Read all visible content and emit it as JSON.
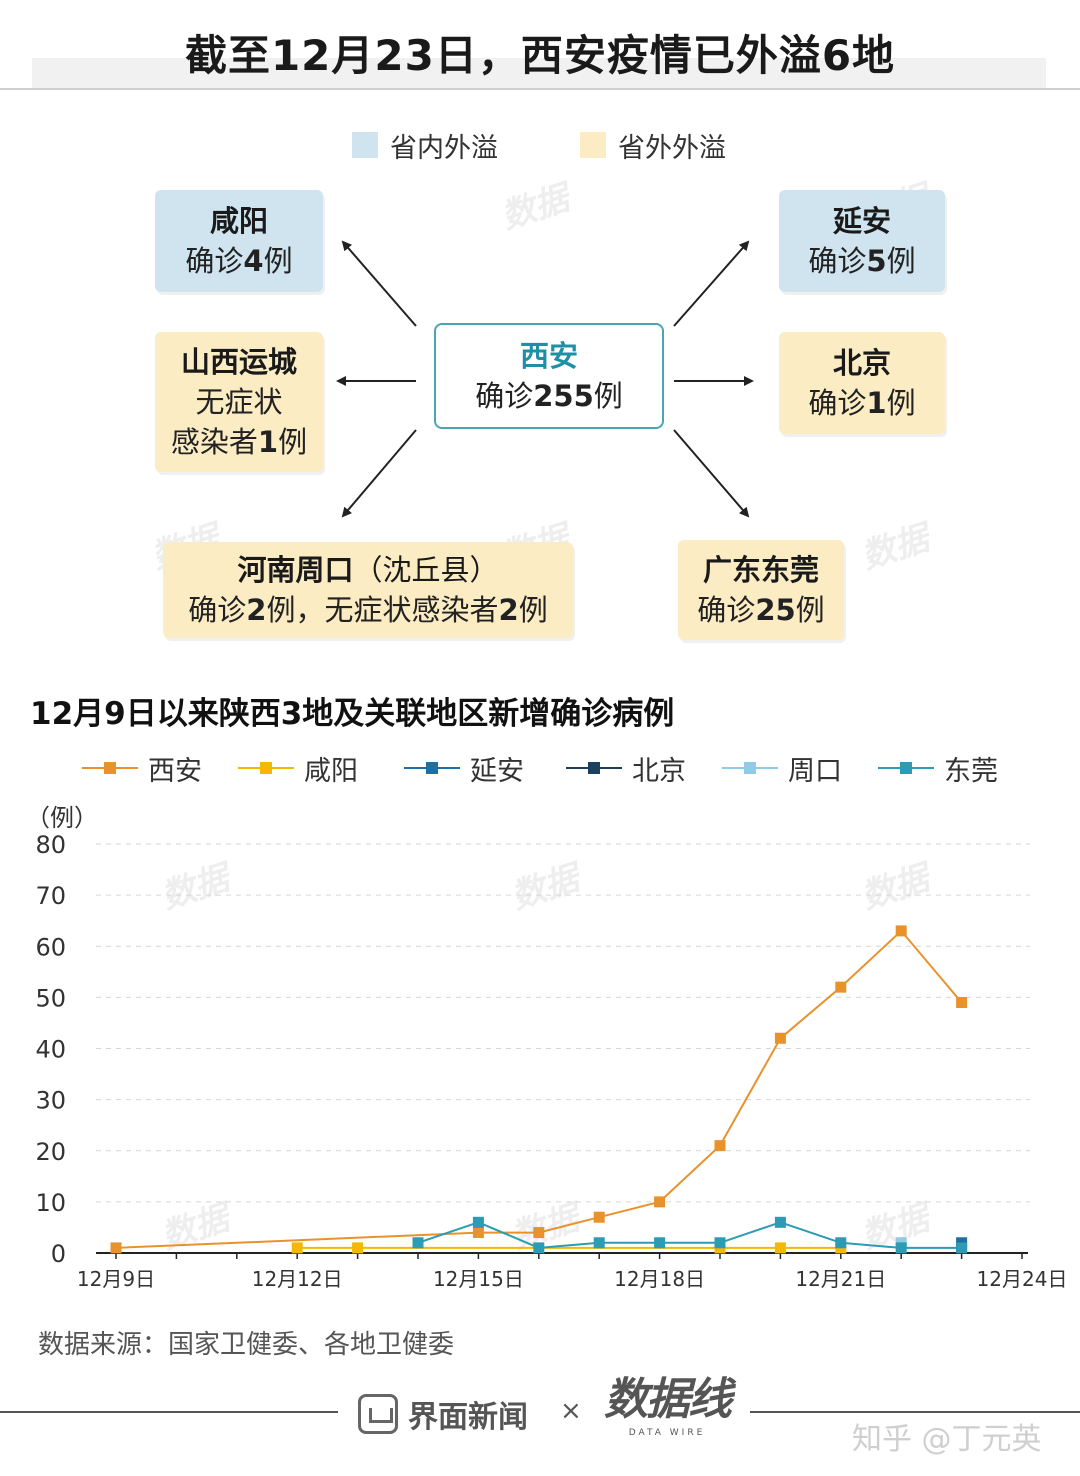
{
  "title": "截至12月23日，西安疫情已外溢6地",
  "legend_top": [
    {
      "label": "省内外溢",
      "color": "#cfe4ef"
    },
    {
      "label": "省外外溢",
      "color": "#fbecc4"
    }
  ],
  "center_box": {
    "name": "西安",
    "line_pre": "确诊",
    "value": "255",
    "line_post": "例"
  },
  "boxes": {
    "xianyang": {
      "name": "咸阳",
      "line_pre": "确诊",
      "value": "4",
      "line_post": "例",
      "type": "in"
    },
    "yanan": {
      "name": "延安",
      "line_pre": "确诊",
      "value": "5",
      "line_post": "例",
      "type": "in"
    },
    "shanxi": {
      "name": "山西运城",
      "line1": "无症状",
      "line2_pre": "感染者",
      "value": "1",
      "line2_post": "例",
      "type": "out"
    },
    "beijing": {
      "name": "北京",
      "line_pre": "确诊",
      "value": "1",
      "line_post": "例",
      "type": "out"
    },
    "henan": {
      "name": "河南周口",
      "name_suffix": "（沈丘县）",
      "line_pre": "确诊",
      "value1": "2",
      "line_mid": "例，无症状感染者",
      "value2": "2",
      "line_post": "例",
      "type": "out"
    },
    "dongguan": {
      "name": "广东东莞",
      "line_pre": "确诊",
      "value": "25",
      "line_post": "例",
      "type": "out"
    }
  },
  "chart_title": "12月9日以来陕西3地及关联地区新增确诊病例",
  "unit": "（例）",
  "chart_data": {
    "type": "line",
    "title": "12月9日以来陕西3地及关联地区新增确诊病例",
    "xlabel": "",
    "ylabel": "（例）",
    "ylim": [
      0,
      80
    ],
    "yticks": [
      0,
      10,
      20,
      30,
      40,
      50,
      60,
      70,
      80
    ],
    "xlim": [
      9,
      24
    ],
    "xticks": [
      9,
      12,
      15,
      18,
      21,
      24
    ],
    "xtick_labels": [
      "12月9日",
      "12月12日",
      "12月15日",
      "12月18日",
      "12月21日",
      "12月24日"
    ],
    "grid": "horizontal dashed",
    "legend_position": "top",
    "series": [
      {
        "name": "西安",
        "color": "#e8922c",
        "points": [
          [
            9,
            1
          ],
          [
            15,
            4
          ],
          [
            16,
            4
          ],
          [
            17,
            7
          ],
          [
            18,
            10
          ],
          [
            19,
            21
          ],
          [
            20,
            42
          ],
          [
            21,
            52
          ],
          [
            22,
            63
          ],
          [
            23,
            49
          ]
        ]
      },
      {
        "name": "咸阳",
        "color": "#f5b800",
        "points": [
          [
            12,
            1
          ],
          [
            13,
            1
          ],
          [
            19,
            1
          ],
          [
            20,
            1
          ],
          [
            21,
            1
          ]
        ]
      },
      {
        "name": "延安",
        "color": "#1d6fa3",
        "points": [
          [
            23,
            2
          ]
        ]
      },
      {
        "name": "北京",
        "color": "#1b3f5e",
        "points": [
          [
            23,
            1
          ]
        ]
      },
      {
        "name": "周口",
        "color": "#8fcbe6",
        "points": [
          [
            22,
            2
          ]
        ]
      },
      {
        "name": "东莞",
        "color": "#2c9bb3",
        "points": [
          [
            14,
            2
          ],
          [
            15,
            6
          ],
          [
            16,
            1
          ],
          [
            17,
            2
          ],
          [
            18,
            2
          ],
          [
            19,
            2
          ],
          [
            20,
            6
          ],
          [
            21,
            2
          ],
          [
            22,
            1
          ],
          [
            23,
            1
          ]
        ]
      }
    ]
  },
  "source": "数据来源：国家卫健委、各地卫健委",
  "footer": {
    "brand1": "界面新闻",
    "separator": "×",
    "brand2": "数据线",
    "brand2_sub": "DATA WIRE",
    "zhihu": "知乎 @丁元英"
  }
}
